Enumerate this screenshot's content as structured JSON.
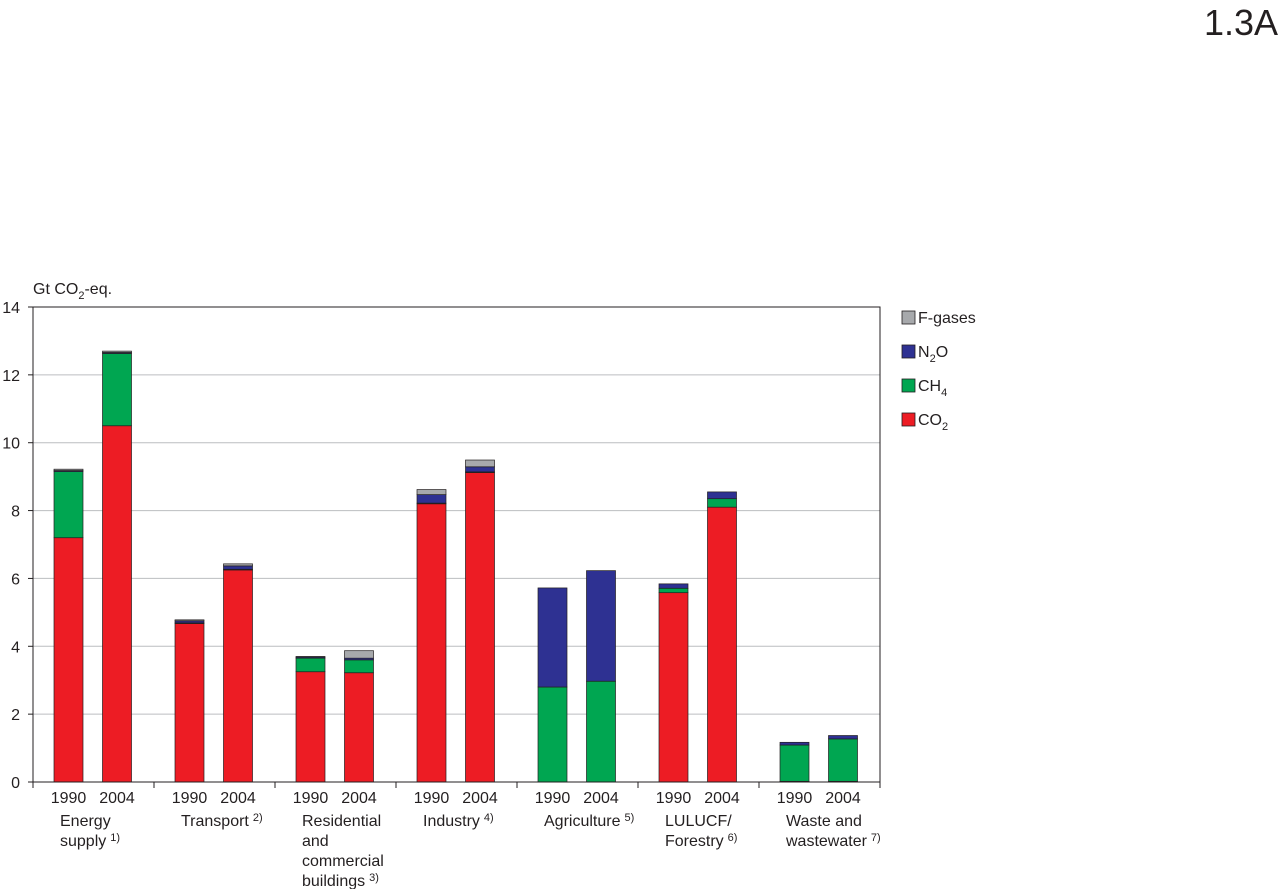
{
  "figure_label": "1.3A",
  "chart_data": {
    "type": "bar",
    "stacked": true,
    "ylabel": {
      "prefix": "Gt CO",
      "sub": "2",
      "suffix": "-eq."
    },
    "ylim": [
      0,
      14
    ],
    "yticks": [
      "0",
      "2",
      "4",
      "6",
      "8",
      "10",
      "12",
      "14"
    ],
    "grid": true,
    "legend_position": "right",
    "colors": {
      "CO2": "#ed1c24",
      "CH4": "#00a651",
      "N2O": "#2e3192",
      "F-gases": "#a7a9ac"
    },
    "legend": [
      {
        "key": "F-gases",
        "text": "F-gases",
        "sub": ""
      },
      {
        "key": "N2O",
        "text": "N",
        "sub": "2",
        "after": "O"
      },
      {
        "key": "CH4",
        "text": "CH",
        "sub": "4",
        "after": ""
      },
      {
        "key": "CO2",
        "text": "CO",
        "sub": "2",
        "after": ""
      }
    ],
    "series_order": [
      "CO2",
      "CH4",
      "N2O",
      "F-gases"
    ],
    "groups": [
      {
        "label_lines": [
          "Energy",
          "supply"
        ],
        "footnote": "1)",
        "bars": [
          {
            "year": "1990",
            "CO2": 7.2,
            "CH4": 1.95,
            "N2O": 0.03,
            "F-gases": 0.04
          },
          {
            "year": "2004",
            "CO2": 10.5,
            "CH4": 2.13,
            "N2O": 0.03,
            "F-gases": 0.04
          }
        ]
      },
      {
        "label_lines": [
          "Transport"
        ],
        "footnote": "2)",
        "bars": [
          {
            "year": "1990",
            "CO2": 4.67,
            "CH4": 0.02,
            "N2O": 0.06,
            "F-gases": 0.03
          },
          {
            "year": "2004",
            "CO2": 6.25,
            "CH4": 0.02,
            "N2O": 0.1,
            "F-gases": 0.06
          }
        ]
      },
      {
        "label_lines": [
          "Residential",
          "and",
          "commercial",
          "buildings"
        ],
        "footnote": "3)",
        "bars": [
          {
            "year": "1990",
            "CO2": 3.25,
            "CH4": 0.4,
            "N2O": 0.03,
            "F-gases": 0.02
          },
          {
            "year": "2004",
            "CO2": 3.22,
            "CH4": 0.38,
            "N2O": 0.05,
            "F-gases": 0.22
          }
        ]
      },
      {
        "label_lines": [
          "Industry"
        ],
        "footnote": "4)",
        "bars": [
          {
            "year": "1990",
            "CO2": 8.2,
            "CH4": 0.02,
            "N2O": 0.25,
            "F-gases": 0.15
          },
          {
            "year": "2004",
            "CO2": 9.12,
            "CH4": 0.02,
            "N2O": 0.15,
            "F-gases": 0.2
          }
        ]
      },
      {
        "label_lines": [
          "Agriculture"
        ],
        "footnote": "5)",
        "bars": [
          {
            "year": "1990",
            "CO2": 0,
            "CH4": 2.8,
            "N2O": 2.92,
            "F-gases": 0
          },
          {
            "year": "2004",
            "CO2": 0,
            "CH4": 2.97,
            "N2O": 3.26,
            "F-gases": 0
          }
        ]
      },
      {
        "label_lines": [
          "LULUCF/",
          "Forestry"
        ],
        "footnote": "6)",
        "bars": [
          {
            "year": "1990",
            "CO2": 5.58,
            "CH4": 0.13,
            "N2O": 0.13,
            "F-gases": 0
          },
          {
            "year": "2004",
            "CO2": 8.1,
            "CH4": 0.25,
            "N2O": 0.2,
            "F-gases": 0
          }
        ]
      },
      {
        "label_lines": [
          "Waste and",
          "wastewater"
        ],
        "footnote": "7)",
        "bars": [
          {
            "year": "1990",
            "CO2": 0.02,
            "CH4": 1.07,
            "N2O": 0.08,
            "F-gases": 0
          },
          {
            "year": "2004",
            "CO2": 0.02,
            "CH4": 1.25,
            "N2O": 0.1,
            "F-gases": 0
          }
        ]
      }
    ]
  }
}
